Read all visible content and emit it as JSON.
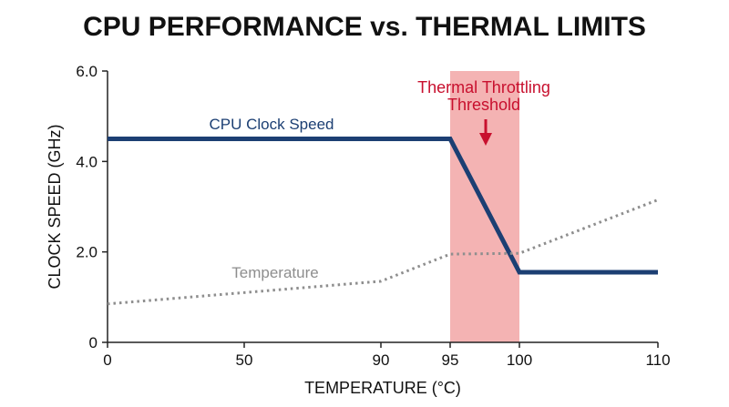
{
  "chart_data": {
    "type": "line",
    "title": "CPU PERFORMANCE vs. THERMAL LIMITS",
    "xlabel": "TEMPERATURE (°C)",
    "ylabel": "CLOCK SPEED (GHz)",
    "x_ticks": [
      0,
      50,
      90,
      95,
      100,
      110
    ],
    "y_ticks": [
      "0",
      "2.0",
      "4.0",
      "6.0"
    ],
    "xlim": [
      0,
      110
    ],
    "ylim": [
      0,
      6
    ],
    "grid": false,
    "legend": "none",
    "series": [
      {
        "name": "CPU Clock Speed",
        "color": "#1c3f73",
        "style": "solid",
        "points": [
          [
            0,
            4.5
          ],
          [
            95,
            4.5
          ],
          [
            100,
            1.55
          ],
          [
            110,
            1.55
          ]
        ]
      },
      {
        "name": "Temperature",
        "color": "#8e8e8e",
        "style": "dotted",
        "points": [
          [
            0,
            0.85
          ],
          [
            90,
            1.35
          ],
          [
            95,
            1.95
          ],
          [
            100,
            1.97
          ],
          [
            110,
            3.15
          ]
        ]
      }
    ],
    "annotations": [
      {
        "type": "band",
        "x_start": 95,
        "x_end": 100,
        "color": "#f4b3b3",
        "text_lines": [
          "Thermal Throttling",
          "Threshold"
        ],
        "text_color": "#c8102e"
      }
    ]
  }
}
